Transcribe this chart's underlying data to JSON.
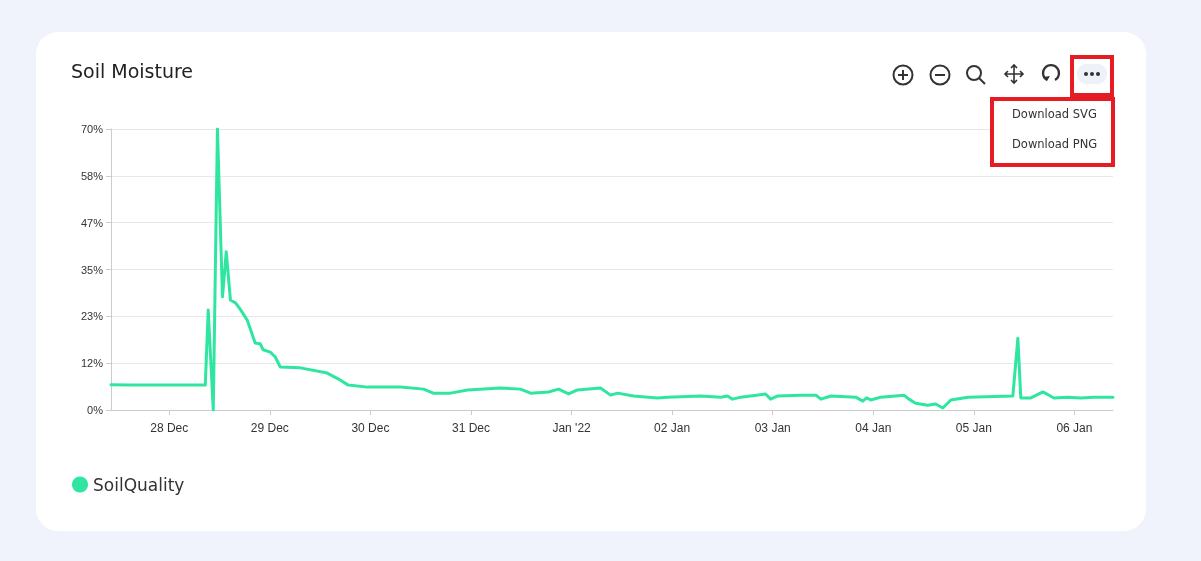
{
  "chart_data": {
    "type": "line",
    "title": "Soil Moisture",
    "x": [
      "2021-12-27T10:06",
      "2021-12-27T14:42",
      "2021-12-28T08:36",
      "2021-12-28T09:18",
      "2021-12-28T10:30",
      "2021-12-28T11:30",
      "2021-12-28T12:42",
      "2021-12-28T13:36",
      "2021-12-28T14:36",
      "2021-12-28T15:48",
      "2021-12-28T17:00",
      "2021-12-28T18:36",
      "2021-12-28T20:30",
      "2021-12-28T21:42",
      "2021-12-28T22:24",
      "2021-12-29T00:06",
      "2021-12-29T01:18",
      "2021-12-29T02:30",
      "2021-12-29T07:18",
      "2021-12-29T13:42",
      "2021-12-29T16:24",
      "2021-12-29T18:42",
      "2021-12-29T23:18",
      "2021-12-30T07:12",
      "2021-12-30T12:42",
      "2021-12-30T15:00",
      "2021-12-30T19:06",
      "2021-12-30T23:12",
      "2021-12-31T07:00",
      "2021-12-31T11:48",
      "2021-12-31T14:12",
      "2021-12-31T18:30",
      "2021-12-31T20:54",
      "2021-12-31T23:18",
      "2022-01-01T01:24",
      "2022-01-01T06:54",
      "2022-01-01T09:18",
      "2022-01-01T11:00",
      "2022-01-01T14:48",
      "2022-01-01T20:30",
      "2022-01-01T22:54",
      "2022-01-02T06:48",
      "2022-01-02T11:36",
      "2022-01-02T13:12",
      "2022-01-02T14:24",
      "2022-01-02T16:24",
      "2022-01-02T22:18",
      "2022-01-02T23:30",
      "2022-01-03T01:12",
      "2022-01-03T06:42",
      "2022-01-03T10:18",
      "2022-01-03T11:30",
      "2022-01-03T13:54",
      "2022-01-03T19:48",
      "2022-01-03T21:30",
      "2022-01-03T22:24",
      "2022-01-03T23:24",
      "2022-01-04T01:48",
      "2022-01-04T07:18",
      "2022-01-04T08:30",
      "2022-01-04T10:06",
      "2022-01-04T13:00",
      "2022-01-04T14:54",
      "2022-01-04T16:36",
      "2022-01-04T18:30",
      "2022-01-04T22:36",
      "2022-01-05T09:18",
      "2022-01-05T10:30",
      "2022-01-05T11:12",
      "2022-01-05T13:36",
      "2022-01-05T16:30",
      "2022-01-05T19:06",
      "2022-01-05T22:24",
      "2022-01-06T01:30",
      "2022-01-06T04:42",
      "2022-01-06T09:12"
    ],
    "series": [
      {
        "name": "SoilQuality",
        "color": "#2ee6a0",
        "values": [
          6.3,
          6.2,
          6.2,
          24.9,
          0,
          70,
          28.2,
          39.4,
          27.4,
          26.7,
          25,
          22.4,
          16.7,
          16.5,
          15,
          14.4,
          13.2,
          10.7,
          10.5,
          9.2,
          7.7,
          6.2,
          5.7,
          5.7,
          5.2,
          4.2,
          4.2,
          5,
          5.5,
          5.2,
          4.2,
          4.5,
          5.2,
          4,
          5,
          5.5,
          3.7,
          4.2,
          3.5,
          3,
          3.2,
          3.5,
          3.2,
          3.5,
          2.7,
          3.2,
          4,
          2.7,
          3.5,
          3.7,
          3.7,
          2.7,
          3.5,
          3.2,
          2.2,
          3,
          2.5,
          3.2,
          3.7,
          2.7,
          1.7,
          1.2,
          1.5,
          0.5,
          2.5,
          3.2,
          3.5,
          17.9,
          3,
          3,
          4.5,
          3,
          3.2,
          3,
          3.2,
          3.2
        ]
      }
    ],
    "xlim": [
      "2021-12-27T10:06",
      "2022-01-06T09:12"
    ],
    "xticks": [
      {
        "value": "2021-12-28T00:00",
        "label": "28 Dec"
      },
      {
        "value": "2021-12-29T00:00",
        "label": "29 Dec"
      },
      {
        "value": "2021-12-30T00:00",
        "label": "30 Dec"
      },
      {
        "value": "2021-12-31T00:00",
        "label": "31 Dec"
      },
      {
        "value": "2022-01-01T00:00",
        "label": "Jan '22"
      },
      {
        "value": "2022-01-02T00:00",
        "label": "02 Jan"
      },
      {
        "value": "2022-01-03T00:00",
        "label": "03 Jan"
      },
      {
        "value": "2022-01-04T00:00",
        "label": "04 Jan"
      },
      {
        "value": "2022-01-05T00:00",
        "label": "05 Jan"
      },
      {
        "value": "2022-01-06T00:00",
        "label": "06 Jan"
      }
    ],
    "ylim": [
      0,
      70
    ],
    "yticks": [
      {
        "value": 0,
        "label": "0%"
      },
      {
        "value": 11.67,
        "label": "12%"
      },
      {
        "value": 23.33,
        "label": "23%"
      },
      {
        "value": 35,
        "label": "35%"
      },
      {
        "value": 46.67,
        "label": "47%"
      },
      {
        "value": 58.33,
        "label": "58%"
      },
      {
        "value": 70,
        "label": "70%"
      }
    ],
    "grid": "y",
    "legend": "bottom left",
    "marker": "none",
    "line_style": "solid",
    "annotations": [
      "Download SVG",
      "Download PNG"
    ]
  }
}
